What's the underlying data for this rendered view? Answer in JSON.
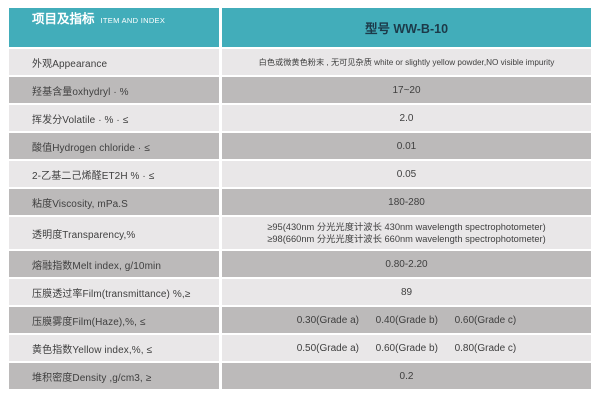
{
  "header": {
    "left_title": "项目及指标",
    "left_subtitle": "ITEM AND INDEX",
    "right_title": "型号 WW-B-10"
  },
  "colors": {
    "teal": "#42adba",
    "light_row": "#e9e7e8",
    "dark_row": "#bcbaba",
    "header_left_text": "#ffffff",
    "header_right_text": "#1c3a49",
    "label_text": "#3f3f3f",
    "page_bg": "#ffffff"
  },
  "table": {
    "rows": [
      {
        "label": "外观Appearance",
        "value": "白色或微黄色粉末 , 无可见杂质 white or slightly yellow powder,NO visible impurity"
      },
      {
        "label": "羟基含量oxhydryl · %",
        "value": "17~20"
      },
      {
        "label": "挥发分Volatile · % · ≤",
        "value": "2.0"
      },
      {
        "label": "酸值Hydrogen chloride · ≤",
        "value": "0.01"
      },
      {
        "label": "2-乙基二己烯醛ET2H % · ≤",
        "value": "0.05"
      },
      {
        "label": "粘度Viscosity, mPa.S",
        "value": "180-280"
      },
      {
        "label": "透明度Transparency,%",
        "value": "≥95(430nm 分光光度计波长 430nm wavelength spectrophotometer)\n≥98(660nm 分光光度计波长 660nm wavelength spectrophotometer)"
      },
      {
        "label": "熔融指数Melt index, g/10min",
        "value": "0.80-2.20"
      },
      {
        "label": "压膜透过率Film(transmittance) %,≥",
        "value": "89"
      },
      {
        "label": "压膜雾度Film(Haze),%,  ≤",
        "value": "0.30(Grade a)      0.40(Grade b)      0.60(Grade c)"
      },
      {
        "label": "黄色指数Yellow index,%, ≤",
        "value": "0.50(Grade a)      0.60(Grade b)      0.80(Grade c)"
      },
      {
        "label": "堆积密度Density ,g/cm3, ≥",
        "value": "0.2"
      }
    ]
  }
}
